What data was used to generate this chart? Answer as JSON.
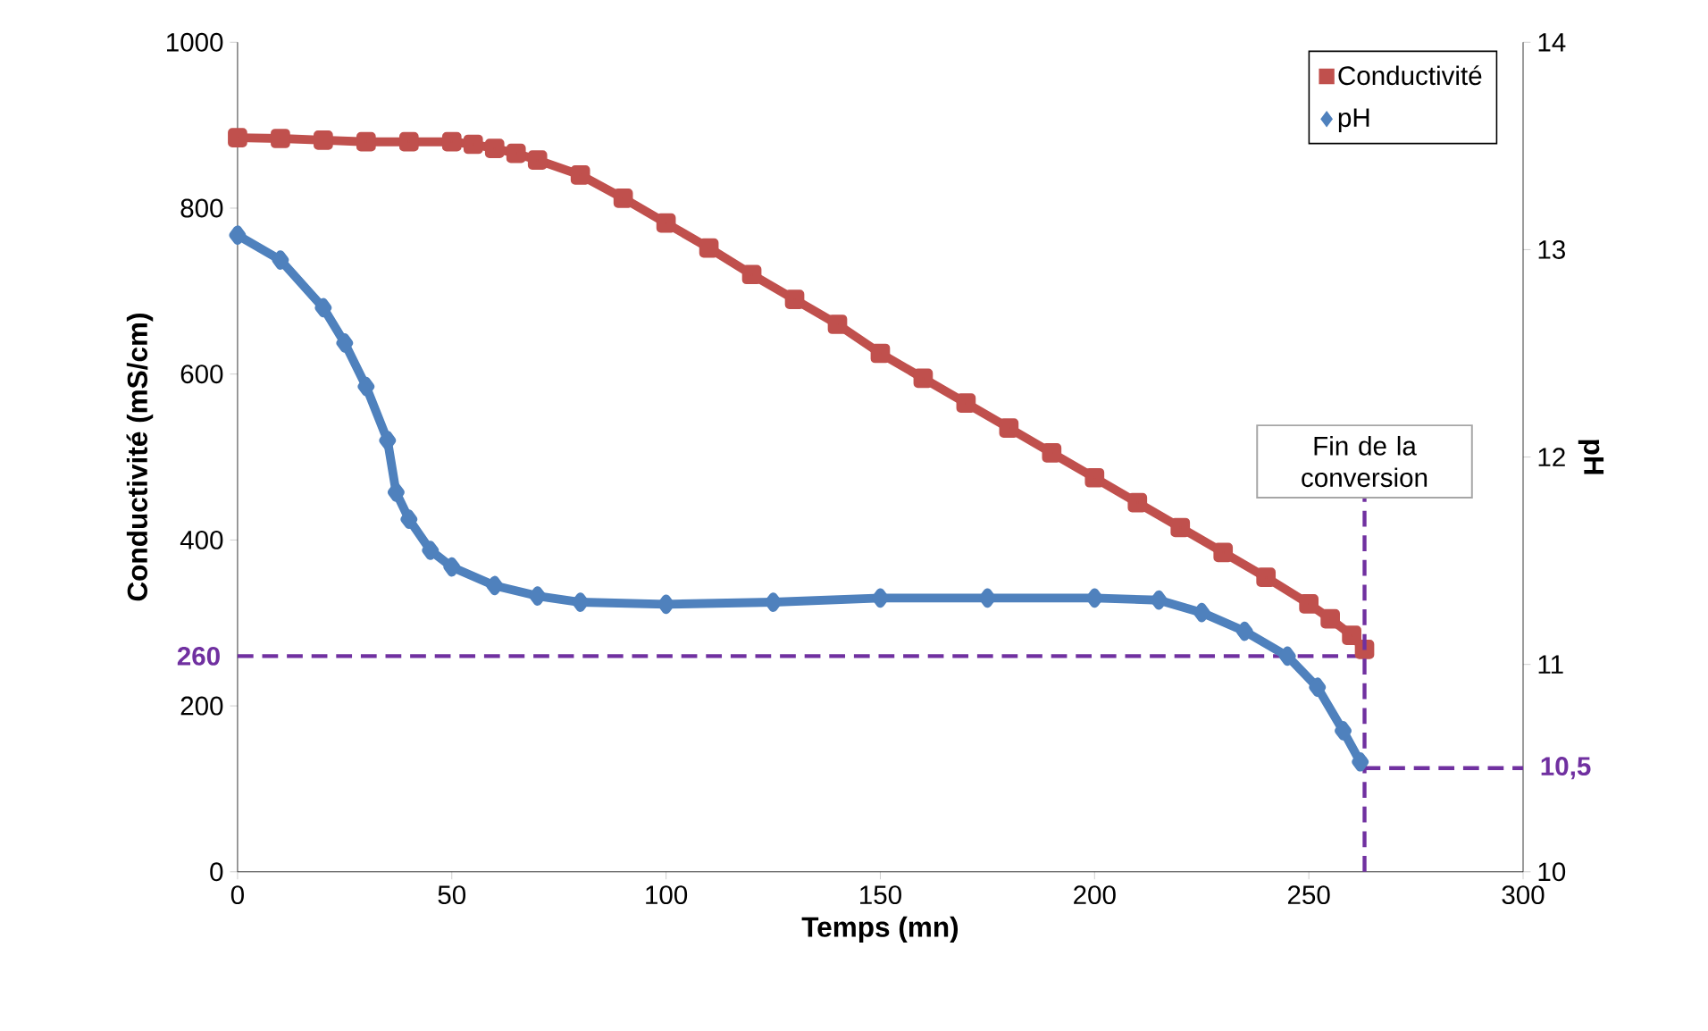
{
  "chart_data": {
    "type": "line",
    "xlabel": "Temps (mn)",
    "ylabel": "Conductivité (mS/cm)",
    "y2label": "pH",
    "xlim": [
      0,
      300
    ],
    "xticks": [
      0,
      50,
      100,
      150,
      200,
      250,
      300
    ],
    "ylim": [
      0,
      1000
    ],
    "yticks": [
      0,
      200,
      400,
      600,
      800,
      1000
    ],
    "y2lim": [
      10,
      14
    ],
    "y2ticks": [
      10,
      11,
      12,
      13,
      14
    ],
    "legend": "top right",
    "series": [
      {
        "name": "Conductivité",
        "color": "#c0504d",
        "marker": "square",
        "x": [
          0,
          10,
          20,
          30,
          40,
          50,
          55,
          60,
          65,
          70,
          80,
          90,
          100,
          110,
          120,
          130,
          140,
          150,
          160,
          170,
          180,
          190,
          200,
          210,
          220,
          230,
          240,
          250,
          255,
          260,
          263
        ],
        "values": [
          885,
          884,
          882,
          880,
          880,
          880,
          877,
          872,
          866,
          858,
          840,
          812,
          782,
          752,
          720,
          690,
          660,
          625,
          595,
          565,
          535,
          505,
          475,
          445,
          415,
          385,
          355,
          323,
          305,
          285,
          268
        ]
      },
      {
        "name": "pH",
        "color": "#4f81bd",
        "marker": "diamond",
        "axis": "y2",
        "x": [
          0,
          10,
          20,
          25,
          30,
          35,
          37,
          40,
          45,
          50,
          60,
          70,
          80,
          100,
          125,
          150,
          175,
          200,
          215,
          225,
          235,
          245,
          252,
          258,
          262
        ],
        "values": [
          13.07,
          12.95,
          12.72,
          12.55,
          12.34,
          12.08,
          11.83,
          11.7,
          11.55,
          11.47,
          11.38,
          11.33,
          11.3,
          11.29,
          11.3,
          11.32,
          11.32,
          11.32,
          11.31,
          11.25,
          11.16,
          11.04,
          10.89,
          10.68,
          10.53
        ]
      }
    ],
    "ref_lines": [
      {
        "axis": "x",
        "value": 263,
        "label": "Fin de la conversion",
        "color": "#7030a0",
        "line_style": "dashed"
      },
      {
        "axis": "y",
        "value": 260,
        "label": "260",
        "color": "#7030a0",
        "line_style": "dashed"
      },
      {
        "axis": "y2",
        "value": 10.5,
        "label": "10,5",
        "color": "#7030a0",
        "line_style": "dashed"
      }
    ]
  }
}
